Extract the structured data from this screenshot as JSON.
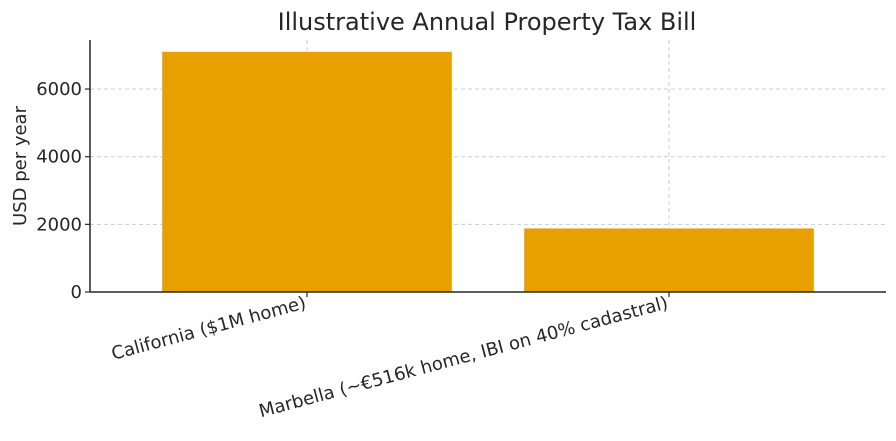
{
  "chart_data": {
    "type": "bar",
    "title": "Illustrative Annual Property Tax Bill",
    "xlabel": "",
    "ylabel": "USD per year",
    "categories": [
      "California ($1M home)",
      "Marbella (~€516k home, IBI on 40% cadastral)"
    ],
    "values": [
      7100,
      1880
    ],
    "ylim": [
      0,
      7450
    ],
    "yticks": [
      0,
      2000,
      4000,
      6000
    ],
    "bar_color": "#e8a000",
    "grid": true
  }
}
